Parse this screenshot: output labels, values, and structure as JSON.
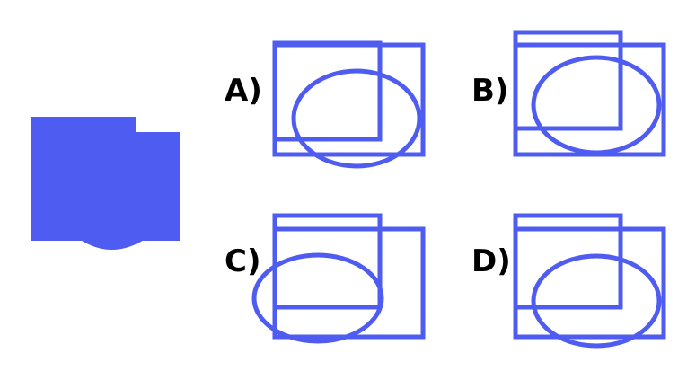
{
  "colors": {
    "shape_fill": "#4f5cf2",
    "outline": "#4f5cf2",
    "label": "#000000",
    "background": "#ffffff"
  },
  "target_shape": {
    "description_icon": "solid-composite-shape"
  },
  "options": [
    {
      "id": "A",
      "label": "A)"
    },
    {
      "id": "B",
      "label": "B)"
    },
    {
      "id": "C",
      "label": "C)"
    },
    {
      "id": "D",
      "label": "D)"
    }
  ]
}
